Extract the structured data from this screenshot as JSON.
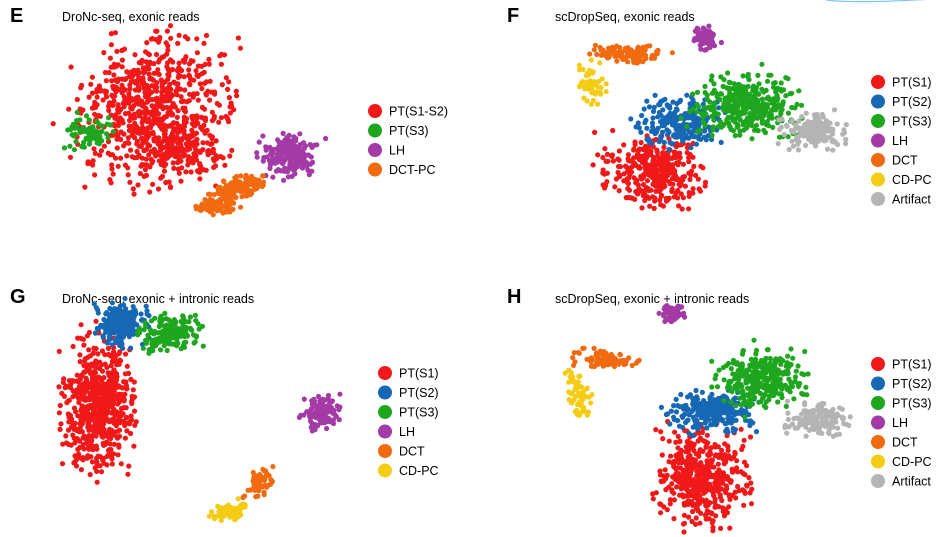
{
  "colors": {
    "red": "#f01818",
    "blue": "#1668b4",
    "green": "#1fa61f",
    "purple": "#a43aa6",
    "orange": "#f26a10",
    "yellow": "#f5cc14",
    "gray": "#b4b4b4"
  },
  "chart_data": [
    {
      "type": "scatter",
      "panel": "E",
      "title": "DroNc-seq, exonic reads",
      "legend_position": "right",
      "series": [
        {
          "name": "PT(S1-S2)",
          "color": "red",
          "clusters": [
            {
              "cx": 0.33,
              "cy": 0.36,
              "rx": 0.24,
              "ry": 0.31,
              "n": 720
            },
            {
              "cx": 0.42,
              "cy": 0.52,
              "rx": 0.14,
              "ry": 0.12,
              "n": 120
            }
          ]
        },
        {
          "name": "PT(S3)",
          "color": "green",
          "clusters": [
            {
              "cx": 0.12,
              "cy": 0.45,
              "rx": 0.07,
              "ry": 0.07,
              "n": 70
            }
          ]
        },
        {
          "name": "LH",
          "color": "purple",
          "clusters": [
            {
              "cx": 0.78,
              "cy": 0.56,
              "rx": 0.09,
              "ry": 0.09,
              "n": 180
            }
          ]
        },
        {
          "name": "DCT-PC",
          "color": "orange",
          "clusters": [
            {
              "cx": 0.61,
              "cy": 0.7,
              "rx": 0.09,
              "ry": 0.04,
              "n": 140,
              "rot": -0.35
            },
            {
              "cx": 0.54,
              "cy": 0.78,
              "rx": 0.07,
              "ry": 0.035,
              "n": 80,
              "rot": -0.2
            }
          ]
        }
      ]
    },
    {
      "type": "scatter",
      "panel": "F",
      "title": "scDropSeq, exonic reads",
      "legend_position": "right",
      "series": [
        {
          "name": "PT(S1)",
          "color": "red",
          "clusters": [
            {
              "cx": 0.34,
              "cy": 0.66,
              "rx": 0.15,
              "ry": 0.16,
              "n": 360
            }
          ]
        },
        {
          "name": "PT(S2)",
          "color": "blue",
          "clusters": [
            {
              "cx": 0.42,
              "cy": 0.43,
              "rx": 0.13,
              "ry": 0.1,
              "n": 230
            }
          ]
        },
        {
          "name": "PT(S3)",
          "color": "green",
          "clusters": [
            {
              "cx": 0.64,
              "cy": 0.35,
              "rx": 0.16,
              "ry": 0.13,
              "n": 380
            }
          ]
        },
        {
          "name": "LH",
          "color": "purple",
          "clusters": [
            {
              "cx": 0.51,
              "cy": 0.03,
              "rx": 0.045,
              "ry": 0.06,
              "n": 60
            }
          ]
        },
        {
          "name": "DCT",
          "color": "orange",
          "clusters": [
            {
              "cx": 0.26,
              "cy": 0.11,
              "rx": 0.12,
              "ry": 0.04,
              "n": 110,
              "rot": 0.15
            }
          ]
        },
        {
          "name": "CD-PC",
          "color": "yellow",
          "clusters": [
            {
              "cx": 0.14,
              "cy": 0.25,
              "rx": 0.04,
              "ry": 0.1,
              "n": 50
            }
          ]
        },
        {
          "name": "Artifact",
          "color": "gray",
          "clusters": [
            {
              "cx": 0.86,
              "cy": 0.47,
              "rx": 0.1,
              "ry": 0.08,
              "n": 150
            }
          ]
        }
      ]
    },
    {
      "type": "scatter",
      "panel": "G",
      "title": "DroNc-seq, exonic + intronic reads",
      "legend_position": "right",
      "series": [
        {
          "name": "PT(S1)",
          "color": "red",
          "clusters": [
            {
              "cx": 0.12,
              "cy": 0.43,
              "rx": 0.11,
              "ry": 0.28,
              "n": 640
            }
          ]
        },
        {
          "name": "PT(S2)",
          "color": "blue",
          "clusters": [
            {
              "cx": 0.2,
              "cy": 0.05,
              "rx": 0.08,
              "ry": 0.1,
              "n": 190
            }
          ]
        },
        {
          "name": "PT(S3)",
          "color": "green",
          "clusters": [
            {
              "cx": 0.36,
              "cy": 0.1,
              "rx": 0.1,
              "ry": 0.08,
              "n": 170,
              "rot": -0.5
            }
          ]
        },
        {
          "name": "LH",
          "color": "purple",
          "clusters": [
            {
              "cx": 0.86,
              "cy": 0.47,
              "rx": 0.06,
              "ry": 0.07,
              "n": 120
            }
          ]
        },
        {
          "name": "DCT",
          "color": "orange",
          "clusters": [
            {
              "cx": 0.66,
              "cy": 0.79,
              "rx": 0.035,
              "ry": 0.07,
              "n": 60,
              "rot": 0.4
            }
          ]
        },
        {
          "name": "CD-PC",
          "color": "yellow",
          "clusters": [
            {
              "cx": 0.56,
              "cy": 0.93,
              "rx": 0.06,
              "ry": 0.04,
              "n": 70,
              "rot": -0.5
            }
          ]
        }
      ]
    },
    {
      "type": "scatter",
      "panel": "H",
      "title": "scDropSeq, exonic + intronic reads",
      "legend_position": "right",
      "series": [
        {
          "name": "PT(S1)",
          "color": "red",
          "clusters": [
            {
              "cx": 0.5,
              "cy": 0.76,
              "rx": 0.14,
              "ry": 0.22,
              "n": 460
            }
          ]
        },
        {
          "name": "PT(S2)",
          "color": "blue",
          "clusters": [
            {
              "cx": 0.53,
              "cy": 0.46,
              "rx": 0.13,
              "ry": 0.09,
              "n": 250
            }
          ]
        },
        {
          "name": "PT(S3)",
          "color": "green",
          "clusters": [
            {
              "cx": 0.69,
              "cy": 0.31,
              "rx": 0.14,
              "ry": 0.12,
              "n": 320
            }
          ]
        },
        {
          "name": "LH",
          "color": "purple",
          "clusters": [
            {
              "cx": 0.4,
              "cy": 0.0,
              "rx": 0.04,
              "ry": 0.05,
              "n": 50
            }
          ]
        },
        {
          "name": "DCT",
          "color": "orange",
          "clusters": [
            {
              "cx": 0.18,
              "cy": 0.22,
              "rx": 0.1,
              "ry": 0.04,
              "n": 90,
              "rot": 0.1
            }
          ]
        },
        {
          "name": "CD-PC",
          "color": "yellow",
          "clusters": [
            {
              "cx": 0.09,
              "cy": 0.38,
              "rx": 0.04,
              "ry": 0.11,
              "n": 60,
              "rot": -0.15
            }
          ]
        },
        {
          "name": "Artifact",
          "color": "gray",
          "clusters": [
            {
              "cx": 0.89,
              "cy": 0.5,
              "rx": 0.1,
              "ry": 0.07,
              "n": 150
            }
          ]
        }
      ]
    }
  ]
}
